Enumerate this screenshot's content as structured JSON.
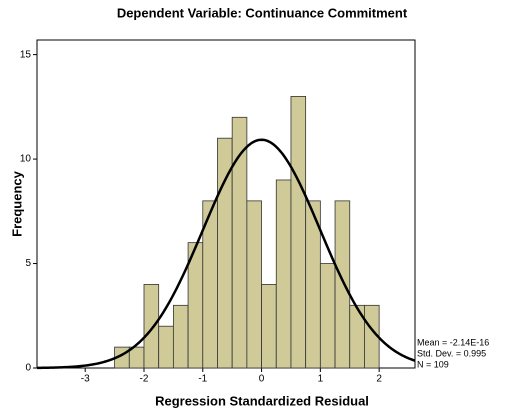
{
  "chart_data": {
    "type": "histogram",
    "title": "Dependent Variable: Continuance Commitment",
    "xlabel": "Regression Standardized Residual",
    "ylabel": "Frequency",
    "bins": [
      -2.5,
      -2.25,
      -2.0,
      -1.75,
      -1.5,
      -1.25,
      -1.0,
      -0.75,
      -0.5,
      -0.25,
      0.0,
      0.25,
      0.5,
      0.75,
      1.0,
      1.25,
      1.5,
      1.75,
      2.0
    ],
    "values": [
      1,
      1,
      4,
      2,
      3,
      6,
      8,
      11,
      12,
      8,
      4,
      9,
      13,
      8,
      5,
      8,
      3,
      3
    ],
    "color": "#cfca98",
    "xlim": [
      -3.82,
      2.61
    ],
    "xticks": [
      -3,
      -2,
      -1,
      0,
      1,
      2
    ],
    "ylim": [
      0,
      15.7
    ],
    "yticks": [
      0,
      5,
      10,
      15
    ],
    "stats": [
      {
        "name": "Mean",
        "value": -2.14e-16,
        "label": "Mean = -2.14E-16"
      },
      {
        "name": "Std. Dev.",
        "value": 0.995,
        "label": "Std. Dev. = 0.995"
      },
      {
        "name": "N",
        "value": 109,
        "label": "N = 109"
      }
    ]
  }
}
